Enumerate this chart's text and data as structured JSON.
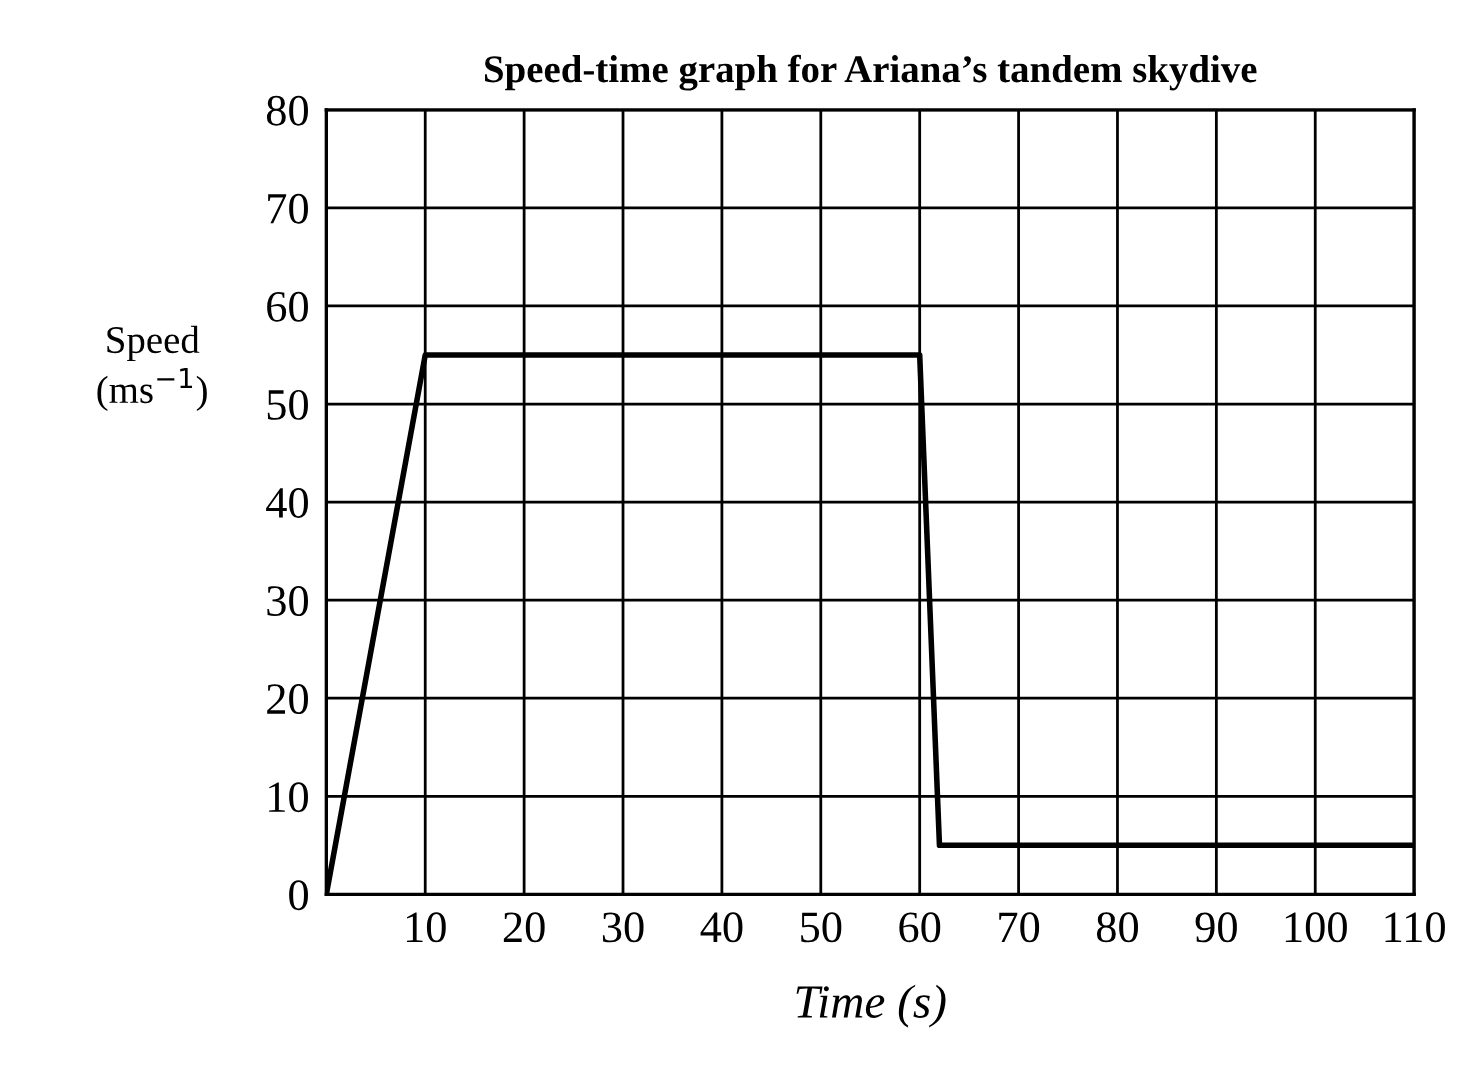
{
  "chart_data": {
    "type": "line",
    "title": "Speed-time graph for Ariana’s tandem skydive",
    "xlabel": "Time (s)",
    "ylabel": "Speed\n(ms$^{−1}$)",
    "x": [
      0,
      10,
      60,
      62,
      110
    ],
    "series": [
      {
        "color": "#000000",
        "values": [
          0,
          55,
          55,
          5,
          5
        ]
      }
    ],
    "xlim": [
      0,
      110
    ],
    "xticks": [
      {
        "value": 0,
        "label": null
      },
      10,
      20,
      30,
      40,
      50,
      60,
      70,
      80,
      90,
      100,
      110
    ],
    "ylim": [
      0,
      80
    ],
    "yticks": [
      0,
      10,
      20,
      30,
      40,
      50,
      60,
      70,
      80
    ],
    "grid": true,
    "marker": "none",
    "line_style": "solid"
  }
}
